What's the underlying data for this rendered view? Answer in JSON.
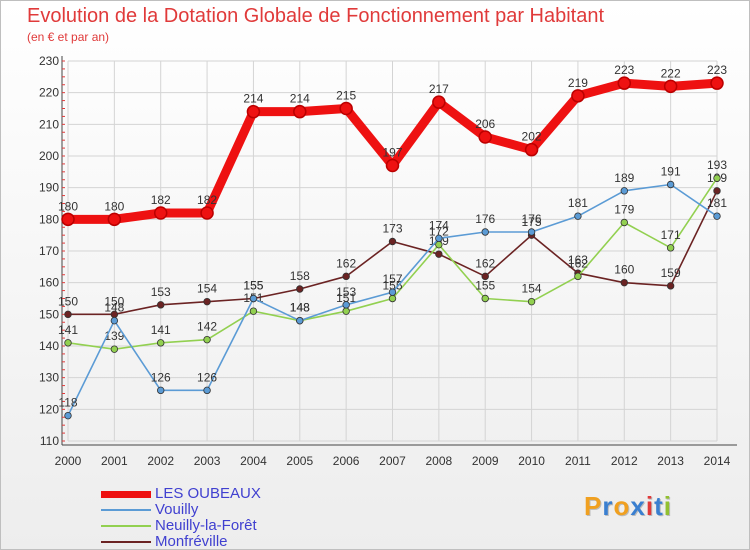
{
  "chart_data": {
    "type": "line",
    "title": "Evolution de la Dotation Globale de Fonctionnement par Habitant",
    "subtitle": "(en € et par an)",
    "categories": [
      "2000",
      "2001",
      "2002",
      "2003",
      "2004",
      "2005",
      "2006",
      "2007",
      "2008",
      "2009",
      "2010",
      "2011",
      "2012",
      "2013",
      "2014"
    ],
    "ylim": [
      110,
      230
    ],
    "yticks": [
      110,
      120,
      130,
      140,
      150,
      160,
      170,
      180,
      190,
      200,
      210,
      220,
      230
    ],
    "grid": true,
    "series": [
      {
        "name": "LES OUBEAUX",
        "color": "#ee1111",
        "values": [
          180,
          180,
          182,
          182,
          214,
          214,
          215,
          197,
          217,
          206,
          202,
          219,
          223,
          222,
          223
        ]
      },
      {
        "name": "Vouilly",
        "color": "#5b9bd5",
        "values": [
          118,
          148,
          126,
          126,
          155,
          148,
          153,
          157,
          174,
          176,
          176,
          181,
          189,
          191,
          181
        ]
      },
      {
        "name": "Neuilly-la-Forêt",
        "color": "#92d050",
        "values": [
          141,
          139,
          141,
          142,
          151,
          148,
          151,
          155,
          172,
          155,
          154,
          162,
          179,
          171,
          193
        ]
      },
      {
        "name": "Monfréville",
        "color": "#6b2323",
        "values": [
          150,
          150,
          153,
          154,
          155,
          158,
          162,
          173,
          169,
          162,
          175,
          163,
          160,
          159,
          189
        ]
      }
    ]
  },
  "logo": {
    "letters": [
      "P",
      "r",
      "o",
      "x",
      "i",
      "t",
      "i"
    ],
    "colors": [
      "#f0a020",
      "#3a7fd0",
      "#f0a020",
      "#3a7fd0",
      "#e03a3a",
      "#3a7fd0",
      "#92c030"
    ]
  }
}
